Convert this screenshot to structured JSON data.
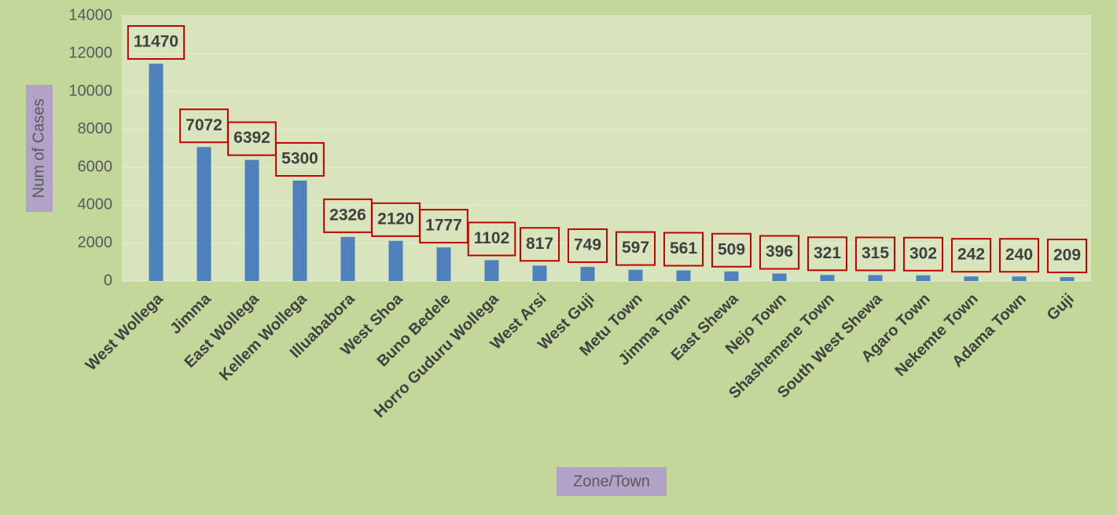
{
  "chart_data": {
    "type": "bar",
    "x_label": "Zone/Town",
    "y_label": "Num of Cases",
    "categories": [
      "West Wollega",
      "Jimma",
      "East Wollega",
      "Kellem Wollega",
      "Illuababora",
      "West Shoa",
      "Buno Bedele",
      "Horro Guduru Wollega",
      "West Arsi",
      "West Guji",
      "Metu Town",
      "Jimma Town",
      "East Shewa",
      "Nejo Town",
      "Shashemene Town",
      "South West Shewa",
      "Agaro Town",
      "Nekemte Town",
      "Adama Town",
      "Guji"
    ],
    "values": [
      11470,
      7072,
      6392,
      5300,
      2326,
      2120,
      1777,
      1102,
      817,
      749,
      597,
      561,
      509,
      396,
      321,
      315,
      302,
      242,
      240,
      209
    ],
    "color": "#4f81bd",
    "ylim": [
      0,
      14000
    ],
    "yticks": [
      0,
      2000,
      4000,
      6000,
      8000,
      10000,
      12000,
      14000
    ],
    "grid": true
  }
}
